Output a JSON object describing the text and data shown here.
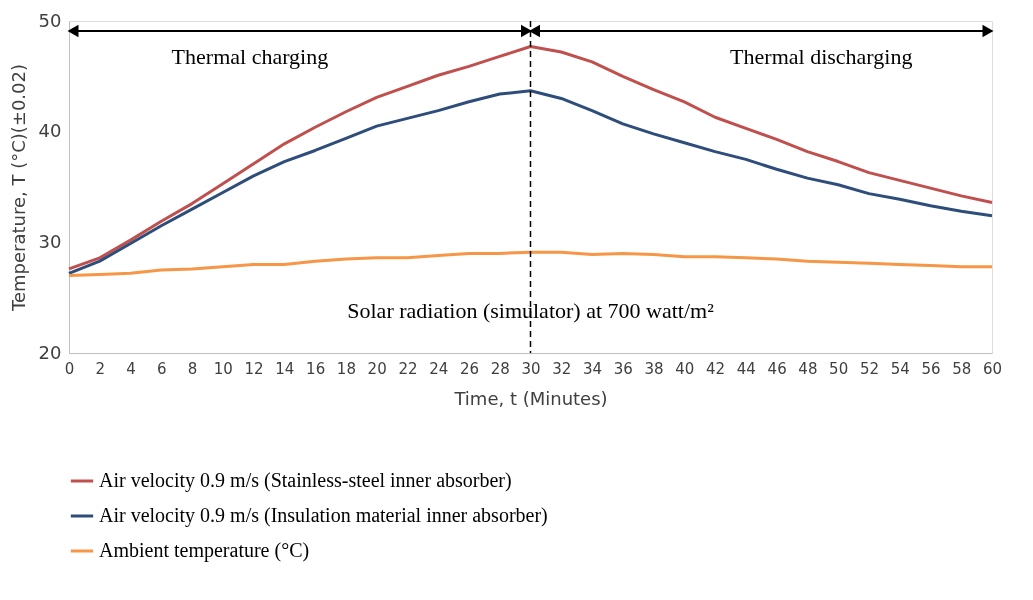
{
  "chart_data": {
    "type": "line",
    "xlabel": "Time, t (Minutes)",
    "ylabel": "Temperature, T (°C)(±0.02)",
    "x": [
      0,
      2,
      4,
      6,
      8,
      10,
      12,
      14,
      16,
      18,
      20,
      22,
      24,
      26,
      28,
      30,
      32,
      34,
      36,
      38,
      40,
      42,
      44,
      46,
      48,
      50,
      52,
      54,
      56,
      58,
      60
    ],
    "series": [
      {
        "name": "Air velocity 0.9 m/s (Stainless-steel inner absorber)",
        "color": "#c0504d",
        "values": [
          27.6,
          28.6,
          30.2,
          31.9,
          33.5,
          35.3,
          37.1,
          38.9,
          40.4,
          41.8,
          43.1,
          44.1,
          45.1,
          45.9,
          46.8,
          47.7,
          47.2,
          46.3,
          45.0,
          43.8,
          42.7,
          41.3,
          40.3,
          39.3,
          38.2,
          37.3,
          36.3,
          35.6,
          34.9,
          34.2,
          33.6
        ]
      },
      {
        "name": "Air velocity 0.9 m/s (Insulation material inner absorber)",
        "color": "#2e4d7b",
        "values": [
          27.2,
          28.3,
          29.9,
          31.5,
          33.0,
          34.5,
          36.0,
          37.3,
          38.3,
          39.4,
          40.5,
          41.2,
          41.9,
          42.7,
          43.4,
          43.7,
          43.0,
          41.9,
          40.7,
          39.8,
          39.0,
          38.2,
          37.5,
          36.6,
          35.8,
          35.2,
          34.4,
          33.9,
          33.3,
          32.8,
          32.4
        ]
      },
      {
        "name": "Ambient temperature (°C)",
        "color": "#f79646",
        "values": [
          27.0,
          27.1,
          27.2,
          27.5,
          27.6,
          27.8,
          28.0,
          28.0,
          28.3,
          28.5,
          28.6,
          28.6,
          28.8,
          29.0,
          29.0,
          29.1,
          29.1,
          28.9,
          29.0,
          28.9,
          28.7,
          28.7,
          28.6,
          28.5,
          28.3,
          28.2,
          28.1,
          28.0,
          27.9,
          27.8,
          27.8
        ]
      }
    ],
    "xlim": [
      0,
      60
    ],
    "xticks": [
      0,
      2,
      4,
      6,
      8,
      10,
      12,
      14,
      16,
      18,
      20,
      22,
      24,
      26,
      28,
      30,
      32,
      34,
      36,
      38,
      40,
      42,
      44,
      46,
      48,
      50,
      52,
      54,
      56,
      58,
      60
    ],
    "ylim": [
      20,
      50
    ],
    "yticks": [
      20,
      30,
      40,
      50
    ],
    "ref_lines": [
      {
        "axis": "x",
        "value": 30,
        "label": null,
        "color": "#000000",
        "line_style": "dashed"
      }
    ],
    "annotations": [
      "Thermal charging",
      "Thermal discharging",
      "Solar radiation (simulator) at 700 watt/m²"
    ],
    "grid": false,
    "legend": "bottom",
    "marker": "none",
    "line_style": "solid"
  }
}
